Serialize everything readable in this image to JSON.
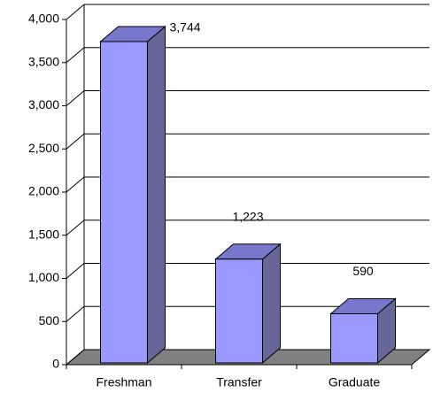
{
  "chart_data": {
    "type": "bar3d",
    "categories": [
      "Freshman",
      "Transfer",
      "Graduate"
    ],
    "values": [
      3744,
      1223,
      590
    ],
    "value_labels": [
      "3,744",
      "1,223",
      "590"
    ],
    "color": "#9999ff",
    "ylim": [
      0,
      4000
    ],
    "yticks": [
      0,
      {
        "value": 500,
        "label": "500"
      },
      {
        "value": 1000,
        "label": "1,000"
      },
      {
        "value": 1500,
        "label": "1,500"
      },
      {
        "value": 2000,
        "label": "2,000"
      },
      {
        "value": 2500,
        "label": "2,500"
      },
      {
        "value": 3000,
        "label": "3,000"
      },
      {
        "value": 3500,
        "label": "3,500"
      },
      {
        "value": 4000,
        "label": "4,000"
      }
    ],
    "grid": true
  }
}
